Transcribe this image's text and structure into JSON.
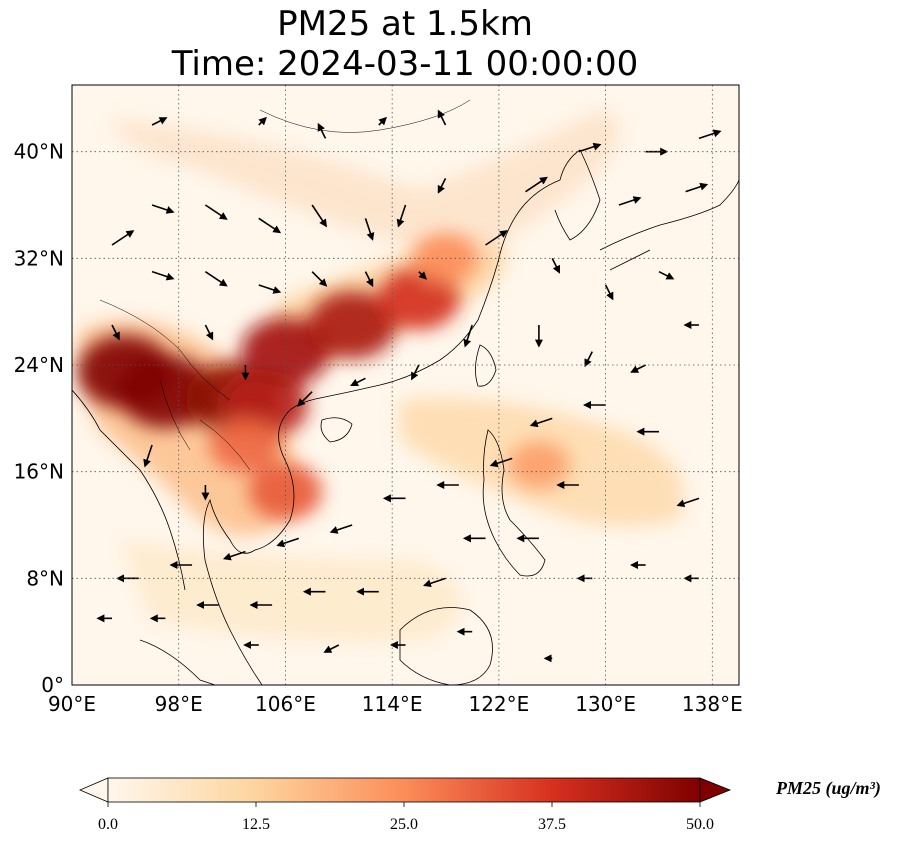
{
  "title": {
    "line1": "PM25 at 1.5km",
    "line2": "Time: 2024-03-11 00:00:00"
  },
  "map": {
    "type": "heatmap-with-vectors",
    "variable": "PM25",
    "level": "1.5km",
    "time": "2024-03-11 00:00:00",
    "lon_range": [
      90,
      140
    ],
    "lat_range": [
      0,
      45
    ],
    "grid": "dotted",
    "lon_ticks": [
      {
        "value": 90,
        "label": "90°E"
      },
      {
        "value": 98,
        "label": "98°E"
      },
      {
        "value": 106,
        "label": "106°E"
      },
      {
        "value": 114,
        "label": "114°E"
      },
      {
        "value": 122,
        "label": "122°E"
      },
      {
        "value": 130,
        "label": "130°E"
      },
      {
        "value": 138,
        "label": "138°E"
      }
    ],
    "lat_ticks": [
      {
        "value": 0,
        "label": "0°"
      },
      {
        "value": 8,
        "label": "8°N"
      },
      {
        "value": 16,
        "label": "16°N"
      },
      {
        "value": 24,
        "label": "24°N"
      },
      {
        "value": 32,
        "label": "32°N"
      },
      {
        "value": 40,
        "label": "40°N"
      }
    ],
    "colormap": "OrRd",
    "colors": {
      "low": "#fff7ec",
      "mid_low": "#fdd49e",
      "mid": "#fc8d59",
      "mid_high": "#d7301f",
      "high": "#7f0000"
    },
    "colorbar": {
      "label": "PM25 (ug/m³)",
      "range": [
        0,
        50
      ],
      "extend": "both",
      "ticks": [
        {
          "value": 0,
          "label": "0.0"
        },
        {
          "value": 12.5,
          "label": "12.5"
        },
        {
          "value": 25,
          "label": "25.0"
        },
        {
          "value": 37.5,
          "label": "37.5"
        },
        {
          "value": 50,
          "label": "50.0"
        }
      ]
    },
    "hotspots": [
      {
        "lon": 94,
        "lat": 23.5,
        "value": 50
      },
      {
        "lon": 97,
        "lat": 22,
        "value": 50
      },
      {
        "lon": 102,
        "lat": 21.5,
        "value": 48
      },
      {
        "lon": 104.5,
        "lat": 21,
        "value": 42
      },
      {
        "lon": 106,
        "lat": 25,
        "value": 45
      },
      {
        "lon": 111,
        "lat": 27,
        "value": 44
      },
      {
        "lon": 116,
        "lat": 29,
        "value": 38
      },
      {
        "lon": 103,
        "lat": 18,
        "value": 30
      },
      {
        "lon": 106,
        "lat": 14.5,
        "value": 32
      },
      {
        "lon": 118,
        "lat": 32,
        "value": 25
      },
      {
        "lon": 125,
        "lat": 16.5,
        "value": 22
      }
    ],
    "wind_vectors": [
      {
        "lon": 93,
        "lat": 33,
        "u": 3,
        "v": 2
      },
      {
        "lon": 96,
        "lat": 36,
        "u": 3,
        "v": -1
      },
      {
        "lon": 100,
        "lat": 36,
        "u": 3,
        "v": -2
      },
      {
        "lon": 104,
        "lat": 35,
        "u": 3,
        "v": -2
      },
      {
        "lon": 108,
        "lat": 36,
        "u": 2,
        "v": -3
      },
      {
        "lon": 112,
        "lat": 35,
        "u": 1,
        "v": -3
      },
      {
        "lon": 115,
        "lat": 36,
        "u": -1,
        "v": -3
      },
      {
        "lon": 118,
        "lat": 38,
        "u": -1,
        "v": -2
      },
      {
        "lon": 96,
        "lat": 31,
        "u": 3,
        "v": -1
      },
      {
        "lon": 100,
        "lat": 31,
        "u": 3,
        "v": -2
      },
      {
        "lon": 104,
        "lat": 30,
        "u": 3,
        "v": -1
      },
      {
        "lon": 108,
        "lat": 31,
        "u": 2,
        "v": -2
      },
      {
        "lon": 112,
        "lat": 31,
        "u": 1,
        "v": -2
      },
      {
        "lon": 116,
        "lat": 31,
        "u": 1,
        "v": -1
      },
      {
        "lon": 121,
        "lat": 33,
        "u": 3,
        "v": 2
      },
      {
        "lon": 124,
        "lat": 37,
        "u": 3,
        "v": 2
      },
      {
        "lon": 128,
        "lat": 40,
        "u": 3,
        "v": 1
      },
      {
        "lon": 133,
        "lat": 40,
        "u": 3,
        "v": 0
      },
      {
        "lon": 137,
        "lat": 41,
        "u": 3,
        "v": 1
      },
      {
        "lon": 131,
        "lat": 36,
        "u": 3,
        "v": 1
      },
      {
        "lon": 136,
        "lat": 37,
        "u": 3,
        "v": 1
      },
      {
        "lon": 126,
        "lat": 32,
        "u": 1,
        "v": -2
      },
      {
        "lon": 130,
        "lat": 30,
        "u": 1,
        "v": -2
      },
      {
        "lon": 134,
        "lat": 31,
        "u": 2,
        "v": -1
      },
      {
        "lon": 125,
        "lat": 27,
        "u": 0,
        "v": -3
      },
      {
        "lon": 129,
        "lat": 25,
        "u": -1,
        "v": -2
      },
      {
        "lon": 133,
        "lat": 24,
        "u": -2,
        "v": -1
      },
      {
        "lon": 137,
        "lat": 27,
        "u": -2,
        "v": 0
      },
      {
        "lon": 120,
        "lat": 27,
        "u": -1,
        "v": -3
      },
      {
        "lon": 116,
        "lat": 24,
        "u": -1,
        "v": -2
      },
      {
        "lon": 112,
        "lat": 23,
        "u": -2,
        "v": -1
      },
      {
        "lon": 108,
        "lat": 22,
        "u": -2,
        "v": -2
      },
      {
        "lon": 126,
        "lat": 20,
        "u": -3,
        "v": -1
      },
      {
        "lon": 130,
        "lat": 21,
        "u": -3,
        "v": 0
      },
      {
        "lon": 134,
        "lat": 19,
        "u": -3,
        "v": 0
      },
      {
        "lon": 123,
        "lat": 17,
        "u": -3,
        "v": -1
      },
      {
        "lon": 128,
        "lat": 15,
        "u": -3,
        "v": 0
      },
      {
        "lon": 137,
        "lat": 14,
        "u": -3,
        "v": -1
      },
      {
        "lon": 119,
        "lat": 15,
        "u": -3,
        "v": 0
      },
      {
        "lon": 115,
        "lat": 14,
        "u": -3,
        "v": 0
      },
      {
        "lon": 111,
        "lat": 12,
        "u": -3,
        "v": -1
      },
      {
        "lon": 107,
        "lat": 11,
        "u": -3,
        "v": -1
      },
      {
        "lon": 103,
        "lat": 10,
        "u": -3,
        "v": -1
      },
      {
        "lon": 99,
        "lat": 9,
        "u": -3,
        "v": 0
      },
      {
        "lon": 95,
        "lat": 8,
        "u": -3,
        "v": 0
      },
      {
        "lon": 121,
        "lat": 11,
        "u": -3,
        "v": 0
      },
      {
        "lon": 125,
        "lat": 11,
        "u": -3,
        "v": 0
      },
      {
        "lon": 118,
        "lat": 8,
        "u": -3,
        "v": -1
      },
      {
        "lon": 113,
        "lat": 7,
        "u": -3,
        "v": 0
      },
      {
        "lon": 109,
        "lat": 7,
        "u": -3,
        "v": 0
      },
      {
        "lon": 105,
        "lat": 6,
        "u": -3,
        "v": 0
      },
      {
        "lon": 101,
        "lat": 6,
        "u": -3,
        "v": 0
      },
      {
        "lon": 97,
        "lat": 5,
        "u": -2,
        "v": 0
      },
      {
        "lon": 93,
        "lat": 5,
        "u": -2,
        "v": 0
      },
      {
        "lon": 104,
        "lat": 3,
        "u": -2,
        "v": 0
      },
      {
        "lon": 110,
        "lat": 3,
        "u": -2,
        "v": -1
      },
      {
        "lon": 115,
        "lat": 3,
        "u": -2,
        "v": 0
      },
      {
        "lon": 120,
        "lat": 4,
        "u": -2,
        "v": 0
      },
      {
        "lon": 126,
        "lat": 2,
        "u": -1,
        "v": 0
      },
      {
        "lon": 100,
        "lat": 15,
        "u": 0,
        "v": -2
      },
      {
        "lon": 96,
        "lat": 18,
        "u": -1,
        "v": -3
      },
      {
        "lon": 103,
        "lat": 24,
        "u": 0,
        "v": -2
      },
      {
        "lon": 93,
        "lat": 27,
        "u": 1,
        "v": -2
      },
      {
        "lon": 100,
        "lat": 27,
        "u": 1,
        "v": -2
      },
      {
        "lon": 104,
        "lat": 42,
        "u": 1,
        "v": 1
      },
      {
        "lon": 109,
        "lat": 41,
        "u": -1,
        "v": 2
      },
      {
        "lon": 113,
        "lat": 42,
        "u": 1,
        "v": 1
      },
      {
        "lon": 118,
        "lat": 42,
        "u": -1,
        "v": 2
      },
      {
        "lon": 96,
        "lat": 42,
        "u": 2,
        "v": 1
      },
      {
        "lon": 129,
        "lat": 8,
        "u": -2,
        "v": 0
      },
      {
        "lon": 133,
        "lat": 9,
        "u": -2,
        "v": 0
      },
      {
        "lon": 137,
        "lat": 8,
        "u": -2,
        "v": 0
      }
    ]
  }
}
